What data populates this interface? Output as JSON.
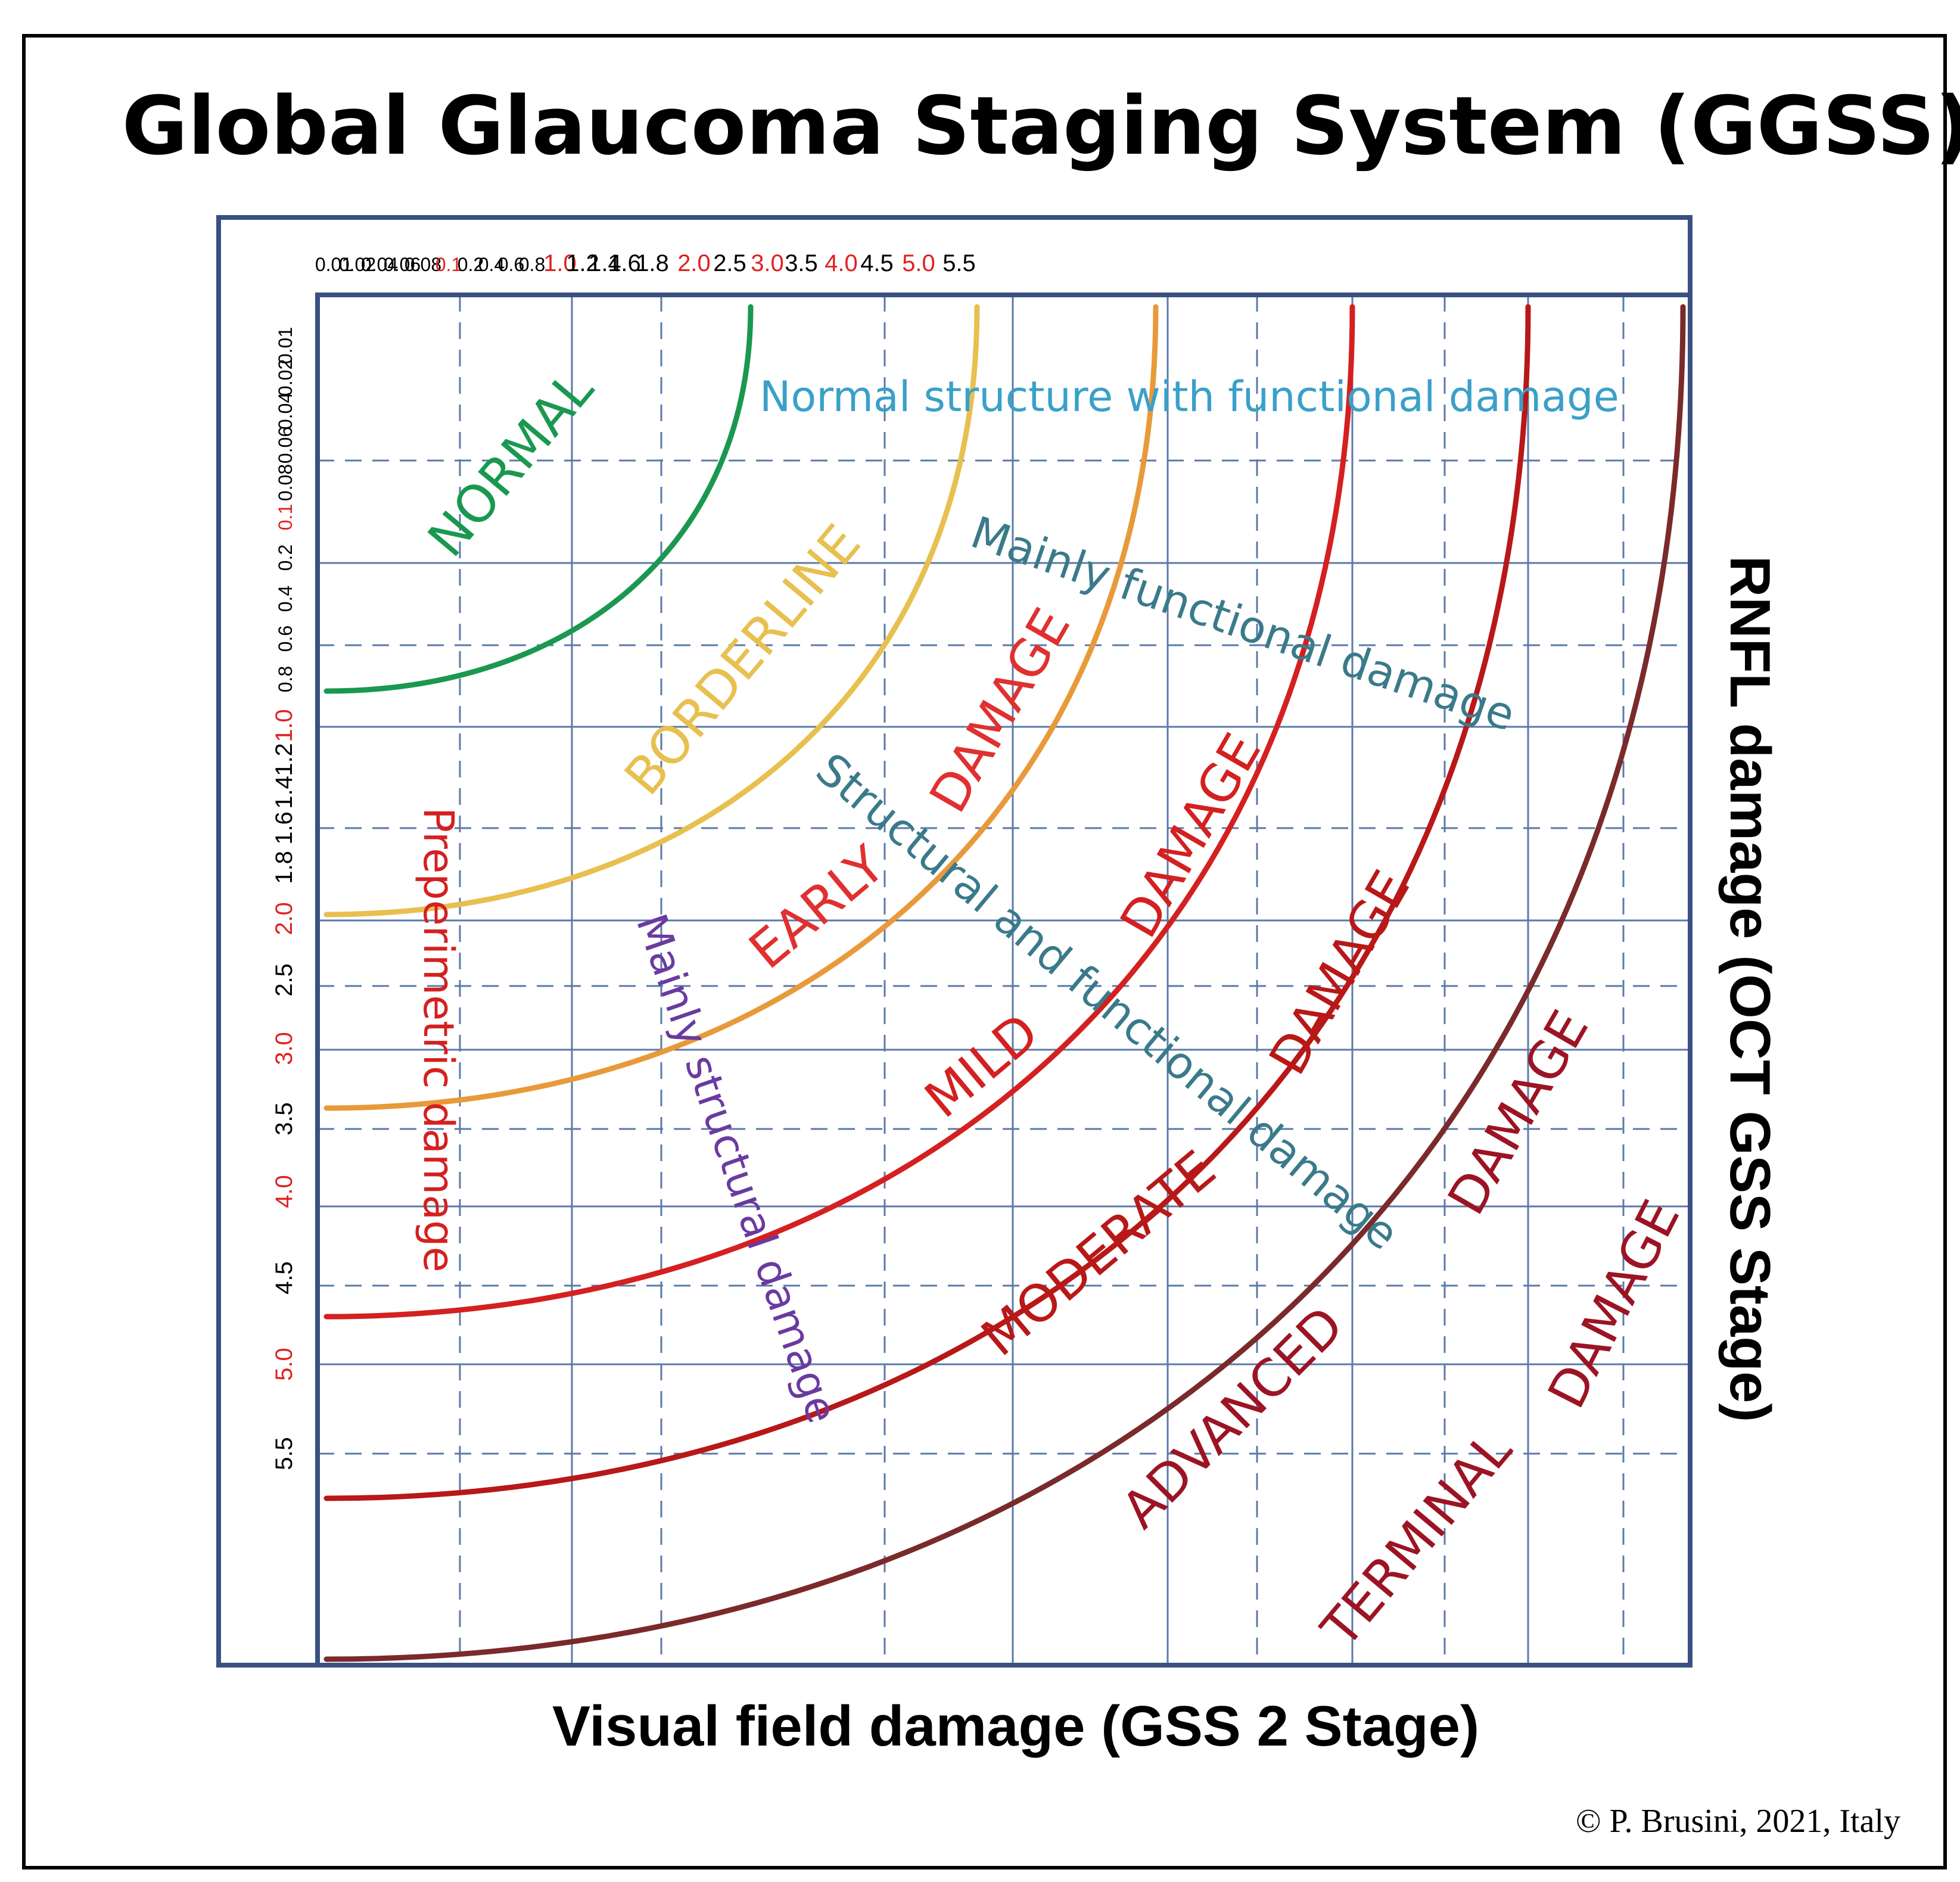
{
  "title": "Global Glaucoma Staging System (GGSS)",
  "x_axis_title": "Visual field damage (GSS 2 Stage)",
  "y_axis_title": "RNFL damage (OCT GSS Stage)",
  "credit": "© P. Brusini, 2021, Italy",
  "colors": {
    "normal": "#1a9850",
    "borderline": "#e8c050",
    "early": "#e89a3a",
    "mild": "#d42020",
    "moderate": "#b81818",
    "advanced": "#9c1424",
    "terminal": "#7a2a2a",
    "zone_label": "#e03030",
    "axis_label_red": "#e02020",
    "cyan_text": "#3aa0c8",
    "teal_text": "#3a7a8a",
    "purple_text": "#6a3aa0",
    "frame": "#3a5080",
    "grid": "#5a7aa8"
  },
  "chart_data": {
    "type": "diagram",
    "x_ticks": [
      {
        "label": "0.01",
        "red": false
      },
      {
        "label": "0.02",
        "red": false
      },
      {
        "label": "0.04",
        "red": false
      },
      {
        "label": "0.06",
        "red": false
      },
      {
        "label": "0.08",
        "red": false
      },
      {
        "label": "0.1",
        "red": true
      },
      {
        "label": "0.2",
        "red": false
      },
      {
        "label": "0.4",
        "red": false
      },
      {
        "label": "0.6",
        "red": false
      },
      {
        "label": "0.8",
        "red": false
      },
      {
        "label": "1.0",
        "red": true
      },
      {
        "label": "1.2",
        "red": false
      },
      {
        "label": "1.4",
        "red": false
      },
      {
        "label": "1.6",
        "red": false
      },
      {
        "label": "1.8",
        "red": false
      },
      {
        "label": "2.0",
        "red": true
      },
      {
        "label": "2.5",
        "red": false
      },
      {
        "label": "3.0",
        "red": true
      },
      {
        "label": "3.5",
        "red": false
      },
      {
        "label": "4.0",
        "red": true
      },
      {
        "label": "4.5",
        "red": false
      },
      {
        "label": "5.0",
        "red": true
      },
      {
        "label": "5.5",
        "red": false
      }
    ],
    "y_ticks": [
      {
        "label": "0.01",
        "red": false
      },
      {
        "label": "0.02",
        "red": false
      },
      {
        "label": "0.04",
        "red": false
      },
      {
        "label": "0.06",
        "red": false
      },
      {
        "label": "0.08",
        "red": false
      },
      {
        "label": "0.1",
        "red": true
      },
      {
        "label": "0.2",
        "red": false
      },
      {
        "label": "0.4",
        "red": false
      },
      {
        "label": "0.6",
        "red": false
      },
      {
        "label": "0.8",
        "red": false
      },
      {
        "label": "1.0",
        "red": true
      },
      {
        "label": "1.2",
        "red": false
      },
      {
        "label": "1.4",
        "red": false
      },
      {
        "label": "1.6",
        "red": false
      },
      {
        "label": "1.8",
        "red": false
      },
      {
        "label": "2.0",
        "red": true
      },
      {
        "label": "2.5",
        "red": false
      },
      {
        "label": "3.0",
        "red": true
      },
      {
        "label": "3.5",
        "red": false
      },
      {
        "label": "4.0",
        "red": true
      },
      {
        "label": "4.5",
        "red": false
      },
      {
        "label": "5.0",
        "red": true
      },
      {
        "label": "5.5",
        "red": false
      }
    ],
    "stage_boundaries": [
      {
        "stage": "normal",
        "value": 1.0
      },
      {
        "stage": "borderline",
        "value": 2.0
      },
      {
        "stage": "early",
        "value": 3.0
      },
      {
        "stage": "mild",
        "value": 4.0
      },
      {
        "stage": "moderate",
        "value": 5.0
      },
      {
        "stage": "advanced",
        "value": 6.0
      }
    ],
    "zone_labels": {
      "normal": "NORMAL",
      "borderline": "BORDERLINE",
      "early_1": "EARLY",
      "early_2": "DAMAGE",
      "mild_1": "MILD",
      "mild_2": "DAMAGE",
      "moderate_1": "MODERATE",
      "moderate_2": "DAMAGE",
      "advanced_1": "ADVANCED",
      "advanced_2": "DAMAGE",
      "terminal_1": "TERMINAL",
      "terminal_2": "DAMAGE"
    },
    "region_labels": {
      "normal_structure": "Normal structure with functional damage",
      "mainly_functional": "Mainly functional damage",
      "structural_functional": "Structural and functional damage",
      "mainly_structural": "Mainly structural damage",
      "preperimetric": "Preperimetric damage"
    }
  }
}
